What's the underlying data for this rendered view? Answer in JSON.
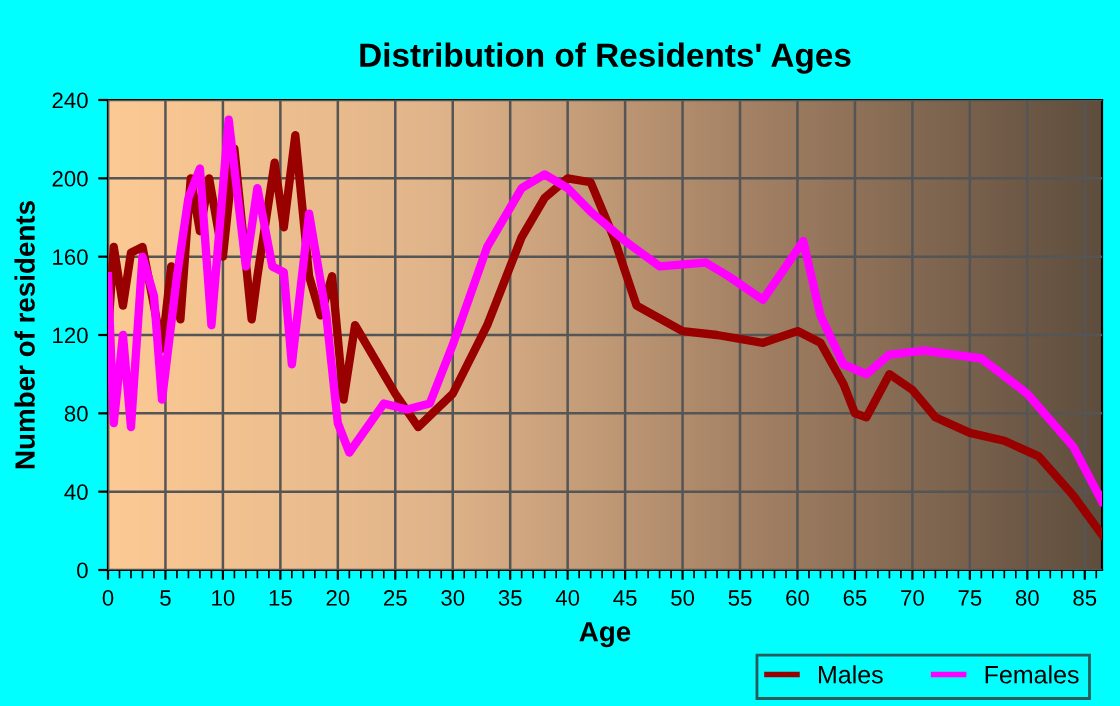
{
  "chart_data": {
    "type": "line",
    "title": "Distribution of Residents' Ages",
    "xlabel": "Age",
    "ylabel": "Number of residents",
    "xlim": [
      0,
      86.5
    ],
    "ylim": [
      0,
      240
    ],
    "xticks": [
      0,
      5,
      10,
      15,
      20,
      25,
      30,
      35,
      40,
      45,
      50,
      55,
      60,
      65,
      70,
      75,
      80,
      85
    ],
    "yticks": [
      0,
      40,
      80,
      120,
      160,
      200,
      240
    ],
    "grid": true,
    "legend": "bottom right",
    "marker": "none",
    "line_style": "solid",
    "series": [
      {
        "name": "Males",
        "color": "#990000",
        "x": [
          0,
          0.5,
          1.3,
          2,
          3,
          4,
          4.7,
          5.5,
          6.3,
          7.2,
          8,
          8.8,
          10,
          11,
          12.5,
          13,
          14.5,
          15.3,
          16.3,
          17.5,
          18.5,
          19.5,
          20.5,
          21.5,
          23,
          25,
          27,
          30,
          33,
          36,
          38,
          40,
          42,
          44,
          46,
          50,
          53,
          57,
          60,
          62,
          64,
          65,
          66,
          68,
          70,
          72,
          75,
          78,
          81,
          84,
          86.5
        ],
        "values": [
          120,
          165,
          135,
          162,
          165,
          135,
          113,
          155,
          128,
          200,
          173,
          200,
          160,
          215,
          128,
          150,
          208,
          175,
          222,
          150,
          130,
          150,
          87,
          125,
          110,
          90,
          73,
          90,
          125,
          170,
          190,
          200,
          198,
          170,
          135,
          122,
          120,
          116,
          122,
          116,
          95,
          80,
          78,
          100,
          92,
          78,
          70,
          66,
          58,
          38,
          18
        ]
      },
      {
        "name": "Females",
        "color": "#ff00ff",
        "x": [
          0,
          0.5,
          1.3,
          2,
          3,
          4,
          4.7,
          6,
          7,
          8,
          9,
          10.5,
          12,
          13,
          14.3,
          15.3,
          16,
          17.5,
          19,
          20,
          21,
          24,
          26,
          28,
          30,
          33,
          36,
          38,
          40,
          42,
          45,
          48,
          52,
          54,
          57,
          59,
          60.5,
          62,
          64,
          66,
          68,
          71,
          76,
          80,
          84,
          86.5
        ],
        "values": [
          150,
          75,
          120,
          73,
          160,
          140,
          87,
          150,
          190,
          205,
          125,
          230,
          155,
          195,
          155,
          152,
          105,
          182,
          130,
          75,
          60,
          85,
          82,
          85,
          115,
          165,
          195,
          202,
          195,
          183,
          168,
          155,
          157,
          150,
          138,
          155,
          168,
          130,
          105,
          100,
          110,
          112,
          108,
          90,
          63,
          35
        ]
      }
    ]
  }
}
